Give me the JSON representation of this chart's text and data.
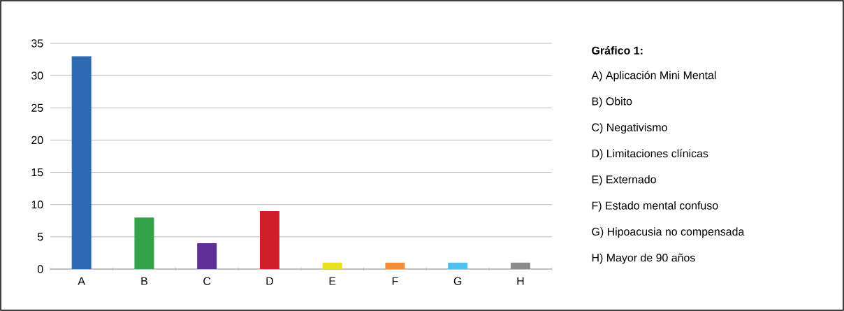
{
  "chart_data": {
    "type": "bar",
    "title": "Gráfico 1:",
    "categories": [
      "A",
      "B",
      "C",
      "D",
      "E",
      "F",
      "G",
      "H"
    ],
    "values": [
      33,
      8,
      4,
      9,
      1,
      1,
      1,
      1
    ],
    "colors": [
      "#2e69b3",
      "#33a34a",
      "#5e3096",
      "#d01f2a",
      "#e8e021",
      "#f08f3a",
      "#52c0ec",
      "#8c8c8c"
    ],
    "ylim": [
      0,
      35
    ],
    "yticks": [
      0,
      5,
      10,
      15,
      20,
      25,
      30,
      35
    ],
    "grid": "y",
    "annotations": [
      "A) Aplicación Mini Mental",
      "B) Obito",
      "C) Negativismo",
      "D) Limitaciones clínicas",
      "E) Externado",
      "F) Estado mental confuso",
      "G) Hipoacusia no compensada",
      "H) Mayor de 90 años"
    ]
  }
}
